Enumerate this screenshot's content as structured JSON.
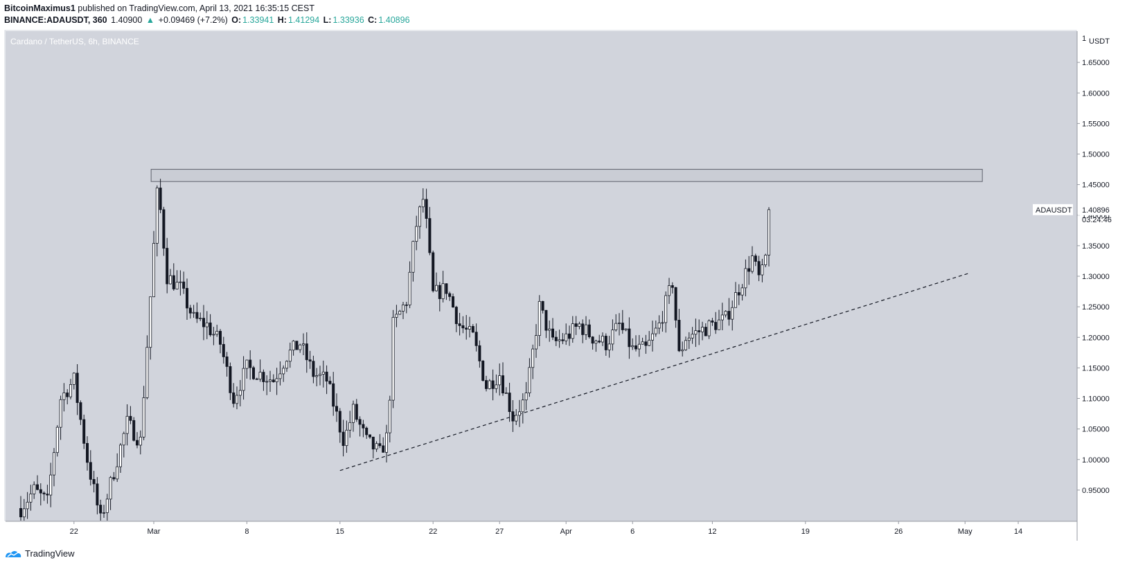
{
  "header": {
    "author": "BitcoinMaximus1",
    "published": "published on TradingView.com, April 13, 2021 16:35:15 CEST",
    "symbol": "BINANCE:ADAUSDT, 360",
    "last": "1.40900",
    "change_arrow": "▲",
    "change": "+0.09469 (+7.2%)",
    "o_label": "O:",
    "o": "1.33941",
    "h_label": "H:",
    "h": "1.41294",
    "l_label": "L:",
    "l": "1.33936",
    "c_label": "C:",
    "c": "1.40896"
  },
  "chart_data": {
    "type": "candlestick",
    "title": "Cardano / TetherUS, 6h, BINANCE",
    "price_scale_unit": "USDT",
    "price_scale_top_tick": "1",
    "ylim": [
      0.9,
      1.72
    ],
    "y_ticks": [
      "1.65000",
      "1.60000",
      "1.55000",
      "1.50000",
      "1.45000",
      "1.40000",
      "1.35000",
      "1.30000",
      "1.25000",
      "1.20000",
      "1.15000",
      "1.10000",
      "1.05000",
      "1.00000",
      "0.95000"
    ],
    "x_ticks": [
      {
        "label": "22",
        "day": 4
      },
      {
        "label": "Mar",
        "day": 10
      },
      {
        "label": "8",
        "day": 17
      },
      {
        "label": "15",
        "day": 24
      },
      {
        "label": "22",
        "day": 31
      },
      {
        "label": "27",
        "day": 36
      },
      {
        "label": "Apr",
        "day": 41
      },
      {
        "label": "6",
        "day": 46
      },
      {
        "label": "12",
        "day": 52
      },
      {
        "label": "19",
        "day": 59
      },
      {
        "label": "26",
        "day": 66
      },
      {
        "label": "May",
        "day": 71
      },
      {
        "label": "14",
        "day": 75
      }
    ],
    "x_axis_note": "day 0 = Feb 18, 2021",
    "last_price_label": "ADAUSDT",
    "last_price_value": "1.40896",
    "countdown": "03:24:46",
    "last_price": 1.40896,
    "resistance_zone": {
      "from_day": 9.8,
      "to_day": 72.3,
      "low": 1.455,
      "high": 1.475
    },
    "trendline": {
      "from": {
        "day": 24.0,
        "price": 0.982
      },
      "to": {
        "day": 71.3,
        "price": 1.305
      }
    },
    "anchors": [
      [
        0,
        0.92
      ],
      [
        1,
        0.95
      ],
      [
        2,
        0.93
      ],
      [
        3,
        1.1
      ],
      [
        4,
        1.13
      ],
      [
        5,
        1.0
      ],
      [
        6,
        0.9
      ],
      [
        7,
        0.98
      ],
      [
        8,
        1.06
      ],
      [
        9,
        1.03
      ],
      [
        9.7,
        1.25
      ],
      [
        10.3,
        1.45
      ],
      [
        11,
        1.3
      ],
      [
        12,
        1.28
      ],
      [
        13,
        1.23
      ],
      [
        14,
        1.22
      ],
      [
        15,
        1.19
      ],
      [
        16,
        1.1
      ],
      [
        17,
        1.15
      ],
      [
        18,
        1.14
      ],
      [
        19,
        1.13
      ],
      [
        20,
        1.17
      ],
      [
        21,
        1.19
      ],
      [
        22,
        1.14
      ],
      [
        23,
        1.13
      ],
      [
        24.3,
        1.03
      ],
      [
        25,
        1.08
      ],
      [
        26,
        1.03
      ],
      [
        27,
        1.01
      ],
      [
        27.6,
        1.04
      ],
      [
        28,
        1.22
      ],
      [
        29,
        1.26
      ],
      [
        29.7,
        1.38
      ],
      [
        30.3,
        1.43
      ],
      [
        31,
        1.27
      ],
      [
        32,
        1.28
      ],
      [
        33,
        1.22
      ],
      [
        34,
        1.2
      ],
      [
        35,
        1.12
      ],
      [
        36,
        1.14
      ],
      [
        37,
        1.07
      ],
      [
        38,
        1.1
      ],
      [
        39,
        1.25
      ],
      [
        40,
        1.19
      ],
      [
        41,
        1.2
      ],
      [
        42,
        1.22
      ],
      [
        43,
        1.2
      ],
      [
        44,
        1.19
      ],
      [
        45,
        1.22
      ],
      [
        46,
        1.18
      ],
      [
        47,
        1.18
      ],
      [
        48,
        1.22
      ],
      [
        49,
        1.29
      ],
      [
        49.5,
        1.17
      ],
      [
        50,
        1.2
      ],
      [
        51,
        1.21
      ],
      [
        52,
        1.22
      ],
      [
        53,
        1.23
      ],
      [
        54,
        1.28
      ],
      [
        55,
        1.33
      ],
      [
        55.6,
        1.29
      ],
      [
        56.1,
        1.34
      ],
      [
        56.4,
        1.409
      ]
    ]
  },
  "footer": {
    "brand": "TradingView"
  }
}
